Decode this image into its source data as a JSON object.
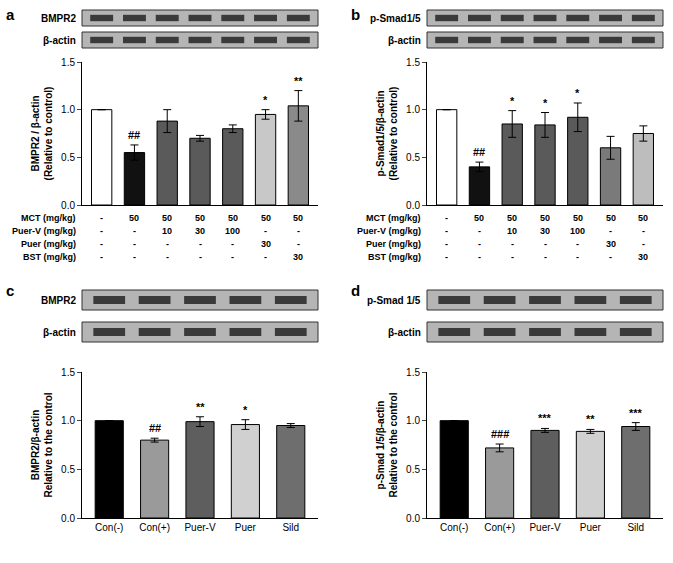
{
  "chart_data": [
    {
      "type": "bar",
      "panel": "a",
      "blot_labels": [
        "BMPR2",
        "β-actin"
      ],
      "ylabel": [
        "BMPR2 / β-actin",
        "(Relative to control)"
      ],
      "categories": [
        null,
        null,
        null,
        null,
        null,
        null,
        null
      ],
      "values": [
        1.0,
        0.55,
        0.88,
        0.7,
        0.8,
        0.95,
        1.04
      ],
      "errors": [
        0,
        0.08,
        0.12,
        0.03,
        0.04,
        0.05,
        0.16
      ],
      "significance": [
        null,
        "##",
        null,
        null,
        null,
        "*",
        "**"
      ],
      "colors": [
        "#ffffff",
        "#111111",
        "#5a5a5a",
        "#5a5a5a",
        "#5a5a5a",
        "#c8c8c8",
        "#8a8a8a"
      ],
      "treatments": [
        {
          "label": "MCT (mg/kg)",
          "cells": [
            "-",
            "50",
            "50",
            "50",
            "50",
            "50",
            "50"
          ]
        },
        {
          "label": "Puer-V (mg/kg)",
          "cells": [
            "-",
            "-",
            "10",
            "30",
            "100",
            "-",
            "-"
          ]
        },
        {
          "label": "Puer (mg/kg)",
          "cells": [
            "-",
            "-",
            "-",
            "-",
            "-",
            "30",
            "-"
          ]
        },
        {
          "label": "BST (mg/kg)",
          "cells": [
            "-",
            "-",
            "-",
            "-",
            "-",
            "-",
            "30"
          ]
        }
      ],
      "ylim": [
        0,
        1.5
      ],
      "yticks": [
        {
          "value": 0,
          "label": "0.0"
        },
        {
          "value": 0.5,
          "label": "0.5"
        },
        {
          "value": 1,
          "label": "1.0"
        },
        {
          "value": 1.5,
          "label": "1.5"
        }
      ],
      "grid": false,
      "tick_labels": "y"
    },
    {
      "type": "bar",
      "panel": "b",
      "blot_labels": [
        "p-Smad1/5",
        "β-actin"
      ],
      "ylabel": [
        "p-Smad1/5/β-actin",
        "(Relative to control)"
      ],
      "categories": [
        null,
        null,
        null,
        null,
        null,
        null,
        null
      ],
      "values": [
        1.0,
        0.4,
        0.85,
        0.84,
        0.92,
        0.6,
        0.75
      ],
      "errors": [
        0,
        0.05,
        0.14,
        0.13,
        0.15,
        0.12,
        0.08
      ],
      "significance": [
        null,
        "##",
        "*",
        "*",
        "*",
        null,
        null
      ],
      "colors": [
        "#ffffff",
        "#111111",
        "#5a5a5a",
        "#5a5a5a",
        "#5a5a5a",
        "#7a7a7a",
        "#bdbdbd"
      ],
      "treatments": [
        {
          "label": "MCT (mg/kg)",
          "cells": [
            "-",
            "50",
            "50",
            "50",
            "50",
            "50",
            "50"
          ]
        },
        {
          "label": "Puer-V (mg/kg)",
          "cells": [
            "-",
            "-",
            "10",
            "30",
            "100",
            "-",
            "-"
          ]
        },
        {
          "label": "Puer (mg/kg)",
          "cells": [
            "-",
            "-",
            "-",
            "-",
            "-",
            "30",
            "-"
          ]
        },
        {
          "label": "BST (mg/kg)",
          "cells": [
            "-",
            "-",
            "-",
            "-",
            "-",
            "-",
            "30"
          ]
        }
      ],
      "ylim": [
        0,
        1.5
      ],
      "yticks": [
        {
          "value": 0,
          "label": "0.0"
        },
        {
          "value": 0.5,
          "label": "0.5"
        },
        {
          "value": 1,
          "label": "1.0"
        },
        {
          "value": 1.5,
          "label": "1.5"
        }
      ],
      "grid": false,
      "tick_labels": "y"
    },
    {
      "type": "bar",
      "panel": "c",
      "blot_labels": [
        "BMPR2",
        "β-actin"
      ],
      "ylabel": [
        "BMPR2/β-actin",
        "Relative to the control"
      ],
      "categories": [
        "Con(-)",
        "Con(+)",
        "Puer-V",
        "Puer",
        "Sild"
      ],
      "values": [
        1.0,
        0.8,
        0.99,
        0.96,
        0.95
      ],
      "errors": [
        0,
        0.02,
        0.05,
        0.05,
        0.02
      ],
      "significance": [
        null,
        "##",
        "**",
        "*",
        null
      ],
      "colors": [
        "#000000",
        "#9a9a9a",
        "#5e5e5e",
        "#d0d0d0",
        "#6e6e6e"
      ],
      "ylim": [
        0,
        1.5
      ],
      "yticks": [
        {
          "value": 0,
          "label": "0.0"
        },
        {
          "value": 0.5,
          "label": "0.5"
        },
        {
          "value": 1,
          "label": "1.0"
        },
        {
          "value": 1.5,
          "label": "1.5"
        }
      ],
      "grid": false
    },
    {
      "type": "bar",
      "panel": "d",
      "blot_labels": [
        "p-Smad 1/5",
        "β-actin"
      ],
      "ylabel": [
        "p-Smad 1/5/β-actin",
        "Relative to the control"
      ],
      "categories": [
        "Con(-)",
        "Con(+)",
        "Puer-V",
        "Puer",
        "Sild"
      ],
      "values": [
        1.0,
        0.72,
        0.9,
        0.89,
        0.94
      ],
      "errors": [
        0,
        0.04,
        0.02,
        0.02,
        0.04
      ],
      "significance": [
        null,
        "###",
        "***",
        "**",
        "***"
      ],
      "colors": [
        "#000000",
        "#9a9a9a",
        "#5e5e5e",
        "#d0d0d0",
        "#6e6e6e"
      ],
      "ylim": [
        0,
        1.5
      ],
      "yticks": [
        {
          "value": 0,
          "label": "0.0"
        },
        {
          "value": 0.5,
          "label": "0.5"
        },
        {
          "value": 1,
          "label": "1.0"
        },
        {
          "value": 1.5,
          "label": "1.5"
        }
      ],
      "grid": false
    }
  ]
}
